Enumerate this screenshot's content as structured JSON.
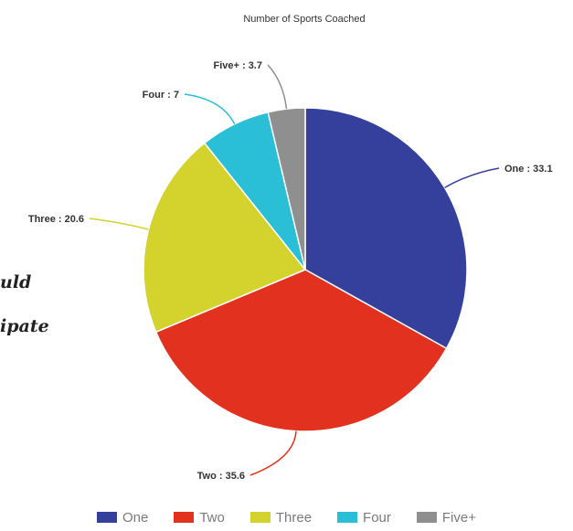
{
  "chart_data": {
    "type": "pie",
    "title": "Number of Sports Coached",
    "slices": [
      {
        "name": "One",
        "value": 33.1,
        "label": "One : 33.1",
        "color": "#34409c"
      },
      {
        "name": "Two",
        "value": 35.6,
        "label": "Two : 35.6",
        "color": "#e2321f"
      },
      {
        "name": "Three",
        "value": 20.6,
        "label": "Three : 20.6",
        "color": "#d4d22c"
      },
      {
        "name": "Four",
        "value": 7,
        "label": "Four : 7",
        "color": "#2bbfd7"
      },
      {
        "name": "Five+",
        "value": 3.7,
        "label": "Five+ : 3.7",
        "color": "#8f8f8f"
      }
    ],
    "legend_position": "bottom"
  },
  "side_text": {
    "line1": "uld",
    "line2": "ipate"
  }
}
